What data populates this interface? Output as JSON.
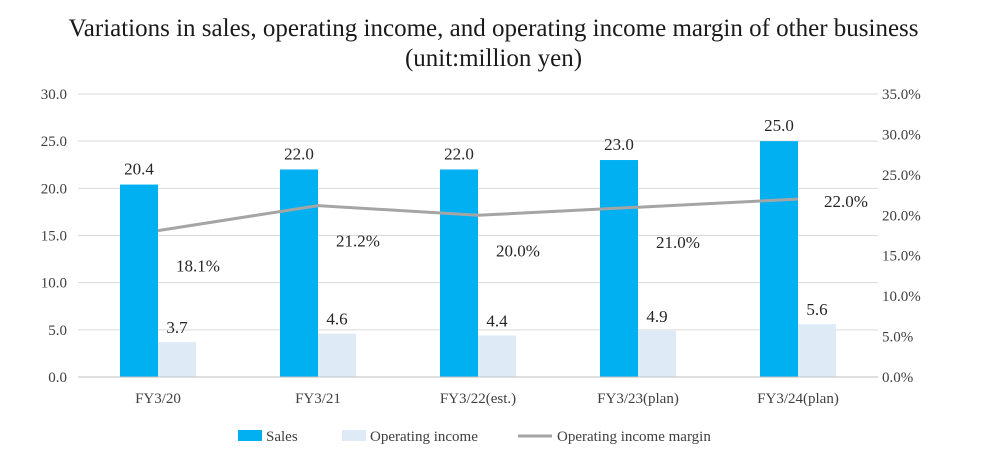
{
  "chart_data": {
    "type": "bar",
    "title_line1": "Variations in sales, operating income, and operating income margin of  other business",
    "title_line2": "(unit:million yen)",
    "categories": [
      "FY3/20",
      "FY3/21",
      "FY3/22(est.)",
      "FY3/23(plan)",
      "FY3/24(plan)"
    ],
    "series": [
      {
        "name": "Sales",
        "kind": "bar",
        "axis": "left",
        "color": "#00B0F0",
        "values": [
          20.4,
          22.0,
          22.0,
          23.0,
          25.0
        ],
        "labels": [
          "20.4",
          "22.0",
          "22.0",
          "23.0",
          "25.0"
        ]
      },
      {
        "name": "Operating income",
        "kind": "bar",
        "axis": "left",
        "color": "#DEEBF7",
        "values": [
          3.7,
          4.6,
          4.4,
          4.9,
          5.6
        ],
        "labels": [
          "3.7",
          "4.6",
          "4.4",
          "4.9",
          "5.6"
        ]
      },
      {
        "name": "Operating income margin",
        "kind": "line",
        "axis": "right",
        "color": "#A5A5A5",
        "values": [
          18.1,
          21.2,
          20.0,
          21.0,
          22.0
        ],
        "labels": [
          "18.1%",
          "21.2%",
          "20.0%",
          "21.0%",
          "22.0%"
        ]
      }
    ],
    "y_left": {
      "min": 0,
      "max": 30,
      "ticks": [
        "0.0",
        "5.0",
        "10.0",
        "15.0",
        "20.0",
        "25.0",
        "30.0"
      ]
    },
    "y_right": {
      "min": 0,
      "max": 35,
      "ticks": [
        "0.0%",
        "5.0%",
        "10.0%",
        "15.0%",
        "20.0%",
        "25.0%",
        "30.0%",
        "35.0%"
      ]
    },
    "grid": true,
    "legend_position": "bottom"
  }
}
